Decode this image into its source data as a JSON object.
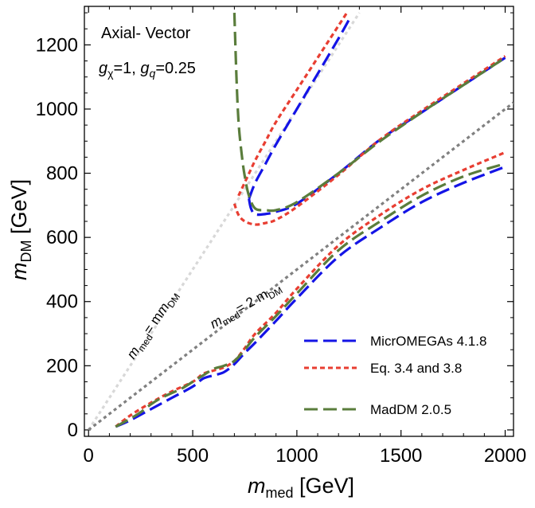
{
  "chart_data": {
    "type": "line",
    "xlabel": "m_med [GeV]",
    "xlabel_main": "m",
    "xlabel_sub": "med",
    "xlabel_unit": " [GeV]",
    "ylabel": "m_DM [GeV]",
    "ylabel_main": "m",
    "ylabel_sub": "DM",
    "ylabel_unit": " [GeV]",
    "xlim": [
      -20,
      2040
    ],
    "ylim": [
      -20,
      1320
    ],
    "xticks": [
      0,
      500,
      1000,
      1500,
      2000
    ],
    "yticks": [
      0,
      200,
      400,
      600,
      800,
      1000,
      1200
    ],
    "grid": false,
    "legend_position": "bottom-right",
    "annotations": {
      "title": "Axial- Vector",
      "couplings": "g_χ=1, g_q=0.25",
      "g": "g",
      "chi": "χ",
      "eq1": "=1, ",
      "q": "q",
      "eq2": "=0.25"
    },
    "reference_lines": [
      {
        "name": "m_med = m_DM",
        "label_main1": "m",
        "label_sub1": "med",
        "label_mid": "= m",
        "label_sub2": "DM",
        "slope": 1.0,
        "color": "#d8d8d8",
        "x": [
          0,
          1300
        ]
      },
      {
        "name": "m_med = 2 m_DM",
        "label_main1": "m",
        "label_sub1": "med",
        "label_mid": "= 2 m",
        "label_sub2": "DM",
        "slope": 0.5,
        "color": "#808080",
        "x": [
          0,
          2040
        ]
      }
    ],
    "series": [
      {
        "name": "MicrOMEGAs 4.1.8",
        "color": "#1414e6",
        "dash": "17 7",
        "segments": [
          {
            "x": [
              130,
              200,
              300,
              400,
              500,
              550,
              600,
              650,
              700,
              750,
              800,
              900,
              1000,
              1200,
              1400,
              1600,
              1800,
              2000
            ],
            "y": [
              10,
              30,
              65,
              100,
              135,
              160,
              170,
              180,
              205,
              240,
              272,
              340,
              410,
              540,
              630,
              710,
              770,
              820
            ]
          },
          {
            "x": [
              770,
              780,
              800,
              850,
              900,
              1000,
              1200,
              1400,
              1600,
              1800,
              2000
            ],
            "y": [
              720,
              690,
              672,
              673,
              680,
              705,
              800,
              905,
              990,
              1075,
              1160
            ]
          },
          {
            "x": [
              770,
              800,
              850,
              900,
              1000,
              1100,
              1200,
              1260
            ],
            "y": [
              720,
              770,
              830,
              890,
              1000,
              1110,
              1220,
              1290
            ]
          }
        ]
      },
      {
        "name": "Eq. 3.4 and 3.8",
        "color": "#e83e32",
        "dash": "6 4",
        "segments": [
          {
            "x": [
              130,
              200,
              300,
              400,
              500,
              550,
              600,
              650,
              700,
              750,
              800,
              900,
              1000,
              1200,
              1400,
              1600,
              1800,
              2000
            ],
            "y": [
              10,
              45,
              85,
              120,
              150,
              175,
              185,
              195,
              215,
              255,
              300,
              365,
              440,
              575,
              670,
              750,
              810,
              865
            ]
          },
          {
            "x": [
              700,
              720,
              750,
              800,
              850,
              900,
              1000,
              1200,
              1400,
              1600,
              1800,
              2000
            ],
            "y": [
              705,
              670,
              650,
              640,
              645,
              655,
              695,
              795,
              905,
              995,
              1080,
              1165
            ]
          },
          {
            "x": [
              720,
              760,
              800,
              850,
              900,
              1000,
              1100,
              1200,
              1240
            ],
            "y": [
              730,
              785,
              840,
              900,
              960,
              1060,
              1160,
              1260,
              1300
            ]
          }
        ]
      },
      {
        "name": "MadDM 2.0.5",
        "color": "#5a7d3c",
        "dash": "17 7",
        "segments": [
          {
            "x": [
              130,
              200,
              250,
              300,
              350,
              400,
              450,
              500,
              550,
              600,
              650,
              700,
              750,
              800,
              900,
              1000,
              1200,
              1400,
              1600,
              1800,
              2000
            ],
            "y": [
              10,
              35,
              55,
              80,
              100,
              115,
              130,
              150,
              170,
              190,
              200,
              215,
              250,
              290,
              355,
              425,
              560,
              650,
              730,
              790,
              830
            ]
          },
          {
            "x": [
              700,
              710,
              720,
              735,
              750,
              770,
              800,
              850,
              900,
              1000,
              1200,
              1400,
              1600,
              1800,
              2000
            ],
            "y": [
              1300,
              1100,
              960,
              860,
              790,
              730,
              690,
              685,
              685,
              710,
              800,
              900,
              990,
              1075,
              1160
            ]
          }
        ]
      }
    ]
  }
}
